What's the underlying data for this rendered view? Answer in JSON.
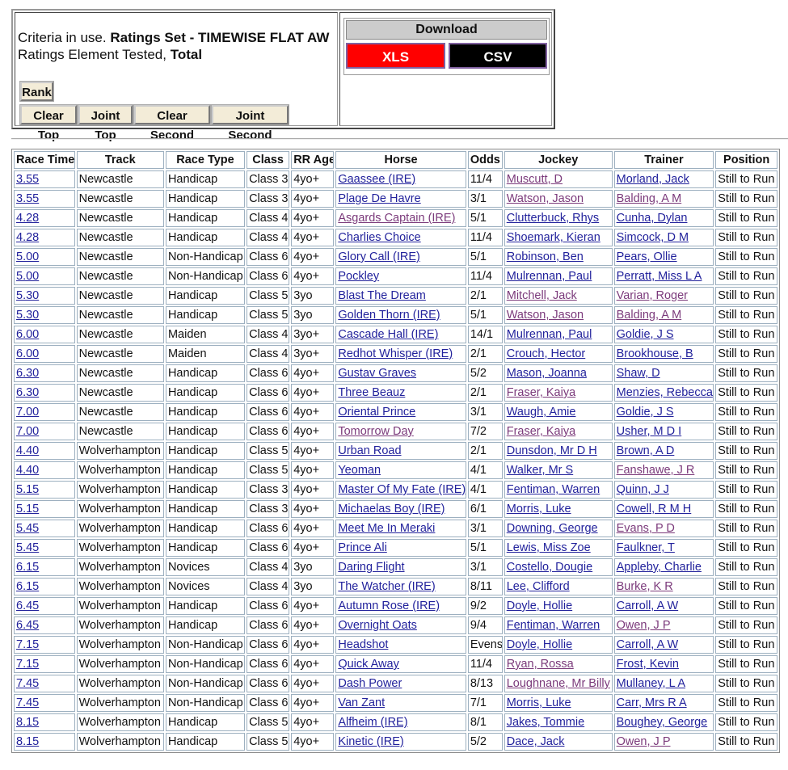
{
  "criteria": {
    "prefix": "Criteria in use.",
    "ratings_set": "Ratings Set - TIMEWISE FLAT AW",
    "element_prefix": "Ratings Element Tested,",
    "element": "Total"
  },
  "buttons": [
    "Rank",
    "Clear Top",
    "Joint Top",
    "Clear Second",
    "Joint Second"
  ],
  "download": {
    "title": "Download",
    "xls": "XLS",
    "csv": "CSV"
  },
  "table": {
    "headers": [
      "Race Time",
      "Track",
      "Race Type",
      "Class",
      "RR Age",
      "Horse",
      "Odds",
      "Jockey",
      "Trainer",
      "Position"
    ],
    "link_columns": [
      0,
      5,
      7,
      8
    ],
    "visited_links": [
      [
        0,
        7
      ],
      [
        1,
        7
      ],
      [
        1,
        8
      ],
      [
        2,
        5
      ],
      [
        6,
        7
      ],
      [
        6,
        8
      ],
      [
        7,
        7
      ],
      [
        7,
        8
      ],
      [
        11,
        7
      ],
      [
        13,
        5
      ],
      [
        13,
        7
      ],
      [
        15,
        8
      ],
      [
        18,
        8
      ],
      [
        21,
        8
      ],
      [
        23,
        8
      ],
      [
        25,
        7
      ],
      [
        26,
        7
      ],
      [
        29,
        8
      ]
    ],
    "rows": [
      [
        "3.55",
        "Newcastle",
        "Handicap",
        "Class 3",
        "4yo+",
        "Gaassee (IRE)",
        "11/4",
        "Muscutt, D",
        "Morland, Jack",
        "Still to Run"
      ],
      [
        "3.55",
        "Newcastle",
        "Handicap",
        "Class 3",
        "4yo+",
        "Plage De Havre",
        "3/1",
        "Watson, Jason",
        "Balding, A M",
        "Still to Run"
      ],
      [
        "4.28",
        "Newcastle",
        "Handicap",
        "Class 4",
        "4yo+",
        "Asgards Captain (IRE)",
        "5/1",
        "Clutterbuck, Rhys",
        "Cunha, Dylan",
        "Still to Run"
      ],
      [
        "4.28",
        "Newcastle",
        "Handicap",
        "Class 4",
        "4yo+",
        "Charlies Choice",
        "11/4",
        "Shoemark, Kieran",
        "Simcock, D M",
        "Still to Run"
      ],
      [
        "5.00",
        "Newcastle",
        "Non-Handicap",
        "Class 6",
        "4yo+",
        "Glory Call (IRE)",
        "5/1",
        "Robinson, Ben",
        "Pears, Ollie",
        "Still to Run"
      ],
      [
        "5.00",
        "Newcastle",
        "Non-Handicap",
        "Class 6",
        "4yo+",
        "Pockley",
        "11/4",
        "Mulrennan, Paul",
        "Perratt, Miss L A",
        "Still to Run"
      ],
      [
        "5.30",
        "Newcastle",
        "Handicap",
        "Class 5",
        "3yo",
        "Blast The Dream",
        "2/1",
        "Mitchell, Jack",
        "Varian, Roger",
        "Still to Run"
      ],
      [
        "5.30",
        "Newcastle",
        "Handicap",
        "Class 5",
        "3yo",
        "Golden Thorn (IRE)",
        "5/1",
        "Watson, Jason",
        "Balding, A M",
        "Still to Run"
      ],
      [
        "6.00",
        "Newcastle",
        "Maiden",
        "Class 4",
        "3yo+",
        "Cascade Hall (IRE)",
        "14/1",
        "Mulrennan, Paul",
        "Goldie, J S",
        "Still to Run"
      ],
      [
        "6.00",
        "Newcastle",
        "Maiden",
        "Class 4",
        "3yo+",
        "Redhot Whisper (IRE)",
        "2/1",
        "Crouch, Hector",
        "Brookhouse, B",
        "Still to Run"
      ],
      [
        "6.30",
        "Newcastle",
        "Handicap",
        "Class 6",
        "4yo+",
        "Gustav Graves",
        "5/2",
        "Mason, Joanna",
        "Shaw, D",
        "Still to Run"
      ],
      [
        "6.30",
        "Newcastle",
        "Handicap",
        "Class 6",
        "4yo+",
        "Three Beauz",
        "2/1",
        "Fraser, Kaiya",
        "Menzies, Rebecca",
        "Still to Run"
      ],
      [
        "7.00",
        "Newcastle",
        "Handicap",
        "Class 6",
        "4yo+",
        "Oriental Prince",
        "3/1",
        "Waugh, Amie",
        "Goldie, J S",
        "Still to Run"
      ],
      [
        "7.00",
        "Newcastle",
        "Handicap",
        "Class 6",
        "4yo+",
        "Tomorrow Day",
        "7/2",
        "Fraser, Kaiya",
        "Usher, M D I",
        "Still to Run"
      ],
      [
        "4.40",
        "Wolverhampton",
        "Handicap",
        "Class 5",
        "4yo+",
        "Urban Road",
        "2/1",
        "Dunsdon, Mr D H",
        "Brown, A D",
        "Still to Run"
      ],
      [
        "4.40",
        "Wolverhampton",
        "Handicap",
        "Class 5",
        "4yo+",
        "Yeoman",
        "4/1",
        "Walker, Mr S",
        "Fanshawe, J R",
        "Still to Run"
      ],
      [
        "5.15",
        "Wolverhampton",
        "Handicap",
        "Class 3",
        "4yo+",
        "Master Of My Fate (IRE)",
        "4/1",
        "Fentiman, Warren",
        "Quinn, J J",
        "Still to Run"
      ],
      [
        "5.15",
        "Wolverhampton",
        "Handicap",
        "Class 3",
        "4yo+",
        "Michaelas Boy (IRE)",
        "6/1",
        "Morris, Luke",
        "Cowell, R M H",
        "Still to Run"
      ],
      [
        "5.45",
        "Wolverhampton",
        "Handicap",
        "Class 6",
        "4yo+",
        "Meet Me In Meraki",
        "3/1",
        "Downing, George",
        "Evans, P D",
        "Still to Run"
      ],
      [
        "5.45",
        "Wolverhampton",
        "Handicap",
        "Class 6",
        "4yo+",
        "Prince Ali",
        "5/1",
        "Lewis, Miss Zoe",
        "Faulkner, T",
        "Still to Run"
      ],
      [
        "6.15",
        "Wolverhampton",
        "Novices",
        "Class 4",
        "3yo",
        "Daring Flight",
        "3/1",
        "Costello, Dougie",
        "Appleby, Charlie",
        "Still to Run"
      ],
      [
        "6.15",
        "Wolverhampton",
        "Novices",
        "Class 4",
        "3yo",
        "The Watcher (IRE)",
        "8/11",
        "Lee, Clifford",
        "Burke, K R",
        "Still to Run"
      ],
      [
        "6.45",
        "Wolverhampton",
        "Handicap",
        "Class 6",
        "4yo+",
        "Autumn Rose (IRE)",
        "9/2",
        "Doyle, Hollie",
        "Carroll, A W",
        "Still to Run"
      ],
      [
        "6.45",
        "Wolverhampton",
        "Handicap",
        "Class 6",
        "4yo+",
        "Overnight Oats",
        "9/4",
        "Fentiman, Warren",
        "Owen, J P",
        "Still to Run"
      ],
      [
        "7.15",
        "Wolverhampton",
        "Non-Handicap",
        "Class 6",
        "4yo+",
        "Headshot",
        "Evens",
        "Doyle, Hollie",
        "Carroll, A W",
        "Still to Run"
      ],
      [
        "7.15",
        "Wolverhampton",
        "Non-Handicap",
        "Class 6",
        "4yo+",
        "Quick Away",
        "11/4",
        "Ryan, Rossa",
        "Frost, Kevin",
        "Still to Run"
      ],
      [
        "7.45",
        "Wolverhampton",
        "Non-Handicap",
        "Class 6",
        "4yo+",
        "Dash Power",
        "8/13",
        "Loughnane, Mr Billy",
        "Mullaney, L A",
        "Still to Run"
      ],
      [
        "7.45",
        "Wolverhampton",
        "Non-Handicap",
        "Class 6",
        "4yo+",
        "Van Zant",
        "7/1",
        "Morris, Luke",
        "Carr, Mrs R A",
        "Still to Run"
      ],
      [
        "8.15",
        "Wolverhampton",
        "Handicap",
        "Class 5",
        "4yo+",
        "Alfheim (IRE)",
        "8/1",
        "Jakes, Tommie",
        "Boughey, George",
        "Still to Run"
      ],
      [
        "8.15",
        "Wolverhampton",
        "Handicap",
        "Class 5",
        "4yo+",
        "Kinetic (IRE)",
        "5/2",
        "Dace, Jack",
        "Owen, J P",
        "Still to Run"
      ]
    ]
  }
}
